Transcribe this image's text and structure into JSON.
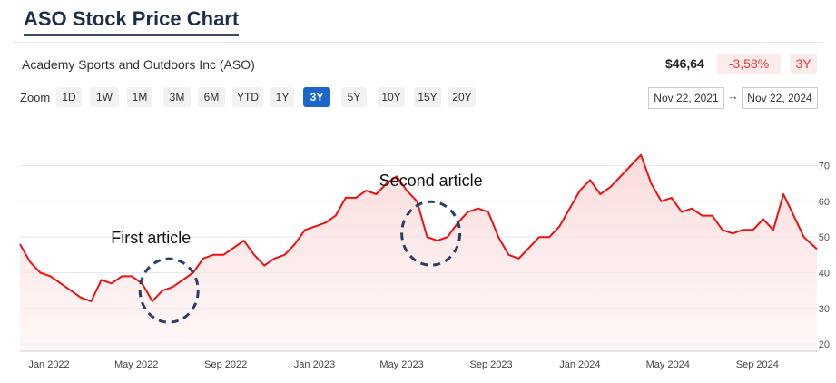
{
  "page": {
    "title": "ASO Stock Price Chart"
  },
  "header": {
    "company": "Academy Sports and Outdoors Inc (ASO)",
    "price": "$46,64",
    "change": "-3,58%",
    "period": "3Y"
  },
  "zoom": {
    "label": "Zoom",
    "options": [
      "1D",
      "1W",
      "1M",
      "3M",
      "6M",
      "YTD",
      "1Y",
      "3Y",
      "5Y",
      "10Y",
      "15Y",
      "20Y"
    ],
    "active": "3Y"
  },
  "range": {
    "from": "Nov 22, 2021",
    "to": "Nov 22, 2024",
    "arrow": "→"
  },
  "colors": {
    "line": "#ee1111",
    "area_top": "#fbd7d7",
    "area_bottom": "#fdf2f2",
    "active_zoom": "#1a66c9",
    "annotation": "#2c3e66"
  },
  "chart_data": {
    "type": "area",
    "x": [
      "2021-11-22",
      "2021-12-06",
      "2021-12-20",
      "2022-01-03",
      "2022-01-17",
      "2022-01-31",
      "2022-02-14",
      "2022-02-28",
      "2022-03-14",
      "2022-03-28",
      "2022-04-11",
      "2022-04-25",
      "2022-05-09",
      "2022-05-23",
      "2022-06-06",
      "2022-06-20",
      "2022-07-04",
      "2022-07-18",
      "2022-08-01",
      "2022-08-15",
      "2022-08-29",
      "2022-09-12",
      "2022-09-26",
      "2022-10-10",
      "2022-10-24",
      "2022-11-07",
      "2022-11-21",
      "2022-12-05",
      "2022-12-19",
      "2023-01-02",
      "2023-01-16",
      "2023-01-30",
      "2023-02-13",
      "2023-02-27",
      "2023-03-13",
      "2023-03-27",
      "2023-04-10",
      "2023-04-24",
      "2023-05-08",
      "2023-05-22",
      "2023-06-05",
      "2023-06-19",
      "2023-07-03",
      "2023-07-17",
      "2023-07-31",
      "2023-08-14",
      "2023-08-28",
      "2023-09-11",
      "2023-09-25",
      "2023-10-09",
      "2023-10-23",
      "2023-11-06",
      "2023-11-20",
      "2023-12-04",
      "2023-12-18",
      "2024-01-01",
      "2024-01-15",
      "2024-01-29",
      "2024-02-12",
      "2024-02-26",
      "2024-03-11",
      "2024-03-25",
      "2024-04-08",
      "2024-04-22",
      "2024-05-06",
      "2024-05-20",
      "2024-06-03",
      "2024-06-17",
      "2024-07-01",
      "2024-07-15",
      "2024-07-29",
      "2024-08-12",
      "2024-08-26",
      "2024-09-09",
      "2024-09-23",
      "2024-10-07",
      "2024-10-21",
      "2024-11-04",
      "2024-11-22"
    ],
    "values": [
      48,
      43,
      40,
      39,
      37,
      35,
      33,
      32,
      38,
      37,
      39,
      39,
      37,
      32,
      35,
      36,
      38,
      40,
      44,
      45,
      45,
      47,
      49,
      45,
      42,
      44,
      45,
      48,
      52,
      53,
      54,
      56,
      61,
      61,
      63,
      62,
      65,
      67,
      63,
      60,
      50,
      49,
      50,
      54,
      57,
      58,
      57,
      50,
      45,
      44,
      47,
      50,
      50,
      53,
      58,
      63,
      66,
      62,
      64,
      67,
      70,
      73,
      65,
      60,
      61,
      57,
      58,
      56,
      56,
      52,
      51,
      52,
      52,
      55,
      52,
      62,
      56,
      50,
      46.64
    ],
    "ylim": [
      18,
      77
    ],
    "yticks": [
      20,
      30,
      40,
      50,
      60,
      70
    ],
    "ytick_labels": [
      "20",
      "30",
      "40",
      "50",
      "60",
      "70"
    ],
    "xticks": [
      "2022-01-01",
      "2022-05-01",
      "2022-09-01",
      "2023-01-01",
      "2023-05-01",
      "2023-09-01",
      "2024-01-01",
      "2024-05-01",
      "2024-09-01"
    ],
    "xtick_labels": [
      "Jan 2022",
      "May 2022",
      "Sep 2022",
      "Jan 2023",
      "May 2023",
      "Sep 2023",
      "Jan 2024",
      "May 2024",
      "Sep 2024"
    ],
    "xlim": [
      "2021-11-22",
      "2024-11-22"
    ],
    "grid": true,
    "annotations": [
      {
        "text": "First article",
        "date": "2022-06-15",
        "value": 35
      },
      {
        "text": "Second article",
        "date": "2023-06-10",
        "value": 51
      }
    ]
  }
}
